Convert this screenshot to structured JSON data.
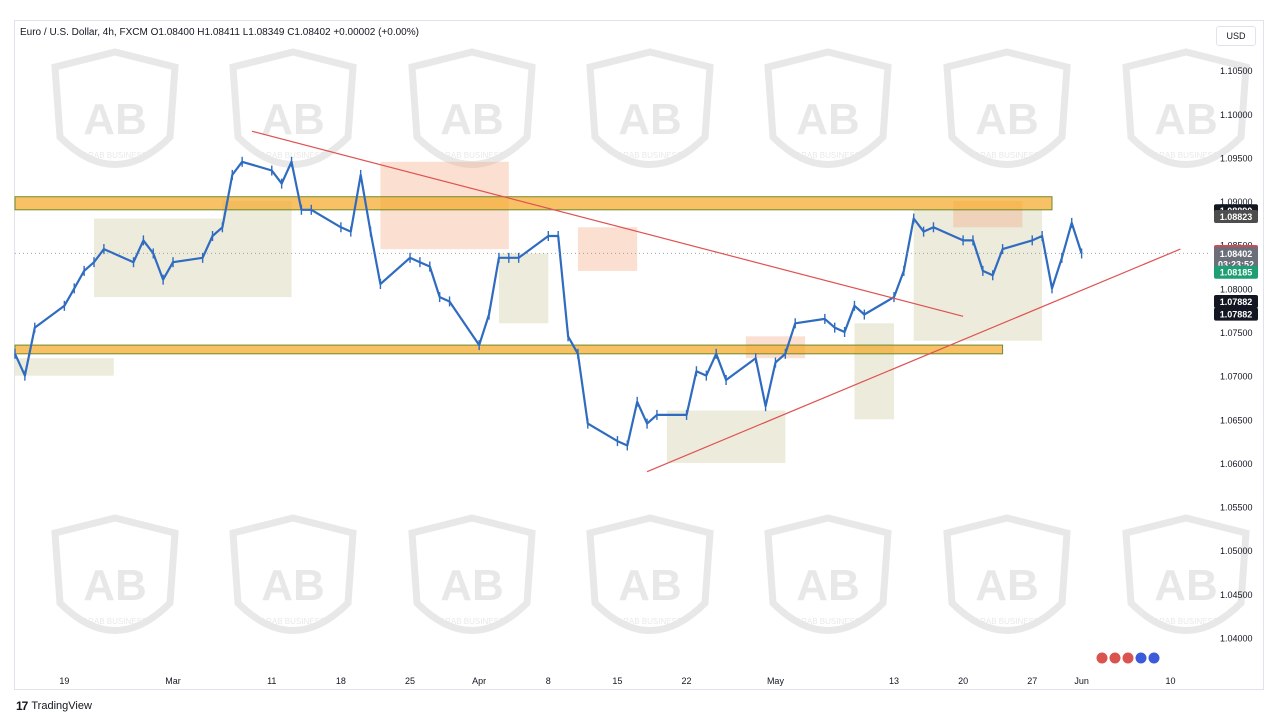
{
  "header": {
    "legend": "Euro / U.S. Dollar, 4h, FXCM  O1.08400  H1.08411  L1.08349  C1.08402  +0.00002 (+0.00%)",
    "currency": "USD"
  },
  "footer": {
    "brand": "TradingView"
  },
  "watermark": {
    "text": "ARAB BUSINESS"
  },
  "colors": {
    "candle": "#2f6cc0",
    "zone_band": "#f5a623",
    "trendline": "#e05252",
    "supply": "#f4a37a",
    "demand": "#22a884",
    "range": "#c9c79a"
  },
  "chart_data": {
    "type": "line",
    "symbol": "EURUSD",
    "timeframe": "4h",
    "ylim": [
      1.0365,
      1.108
    ],
    "price_ticks": [
      "1.10500",
      "1.10000",
      "1.09500",
      "1.09000",
      "1.08500",
      "1.08000",
      "1.07500",
      "1.07000",
      "1.06500",
      "1.06000",
      "1.05500",
      "1.05000",
      "1.04500",
      "1.04000"
    ],
    "price_tick_values": [
      1.105,
      1.1,
      1.095,
      1.09,
      1.085,
      1.08,
      1.075,
      1.07,
      1.065,
      1.06,
      1.055,
      1.05,
      1.045,
      1.04
    ],
    "date_ticks": [
      {
        "label": "19",
        "date": "2024-02-19"
      },
      {
        "label": "Mar",
        "date": "2024-03-01"
      },
      {
        "label": "11",
        "date": "2024-03-11"
      },
      {
        "label": "18",
        "date": "2024-03-18"
      },
      {
        "label": "25",
        "date": "2024-03-25"
      },
      {
        "label": "Apr",
        "date": "2024-04-01"
      },
      {
        "label": "8",
        "date": "2024-04-08"
      },
      {
        "label": "15",
        "date": "2024-04-15"
      },
      {
        "label": "22",
        "date": "2024-04-22"
      },
      {
        "label": "May",
        "date": "2024-05-01"
      },
      {
        "label": "13",
        "date": "2024-05-13"
      },
      {
        "label": "20",
        "date": "2024-05-20"
      },
      {
        "label": "27",
        "date": "2024-05-27"
      },
      {
        "label": "Jun",
        "date": "2024-06-01"
      },
      {
        "label": "10",
        "date": "2024-06-10"
      }
    ],
    "series": [
      {
        "values": [
          {
            "x": "2024-02-14",
            "y": 1.0725
          },
          {
            "x": "2024-02-15",
            "y": 1.07
          },
          {
            "x": "2024-02-16",
            "y": 1.0755
          },
          {
            "x": "2024-02-19",
            "y": 1.078
          },
          {
            "x": "2024-02-20",
            "y": 1.08
          },
          {
            "x": "2024-02-21",
            "y": 1.082
          },
          {
            "x": "2024-02-22",
            "y": 1.083
          },
          {
            "x": "2024-02-23",
            "y": 1.0845
          },
          {
            "x": "2024-02-26",
            "y": 1.083
          },
          {
            "x": "2024-02-27",
            "y": 1.0855
          },
          {
            "x": "2024-02-28",
            "y": 1.084
          },
          {
            "x": "2024-02-29",
            "y": 1.081
          },
          {
            "x": "2024-03-01",
            "y": 1.083
          },
          {
            "x": "2024-03-04",
            "y": 1.0835
          },
          {
            "x": "2024-03-05",
            "y": 1.086
          },
          {
            "x": "2024-03-06",
            "y": 1.087
          },
          {
            "x": "2024-03-07",
            "y": 1.093
          },
          {
            "x": "2024-03-08",
            "y": 1.0945
          },
          {
            "x": "2024-03-11",
            "y": 1.0935
          },
          {
            "x": "2024-03-12",
            "y": 1.092
          },
          {
            "x": "2024-03-13",
            "y": 1.0945
          },
          {
            "x": "2024-03-14",
            "y": 1.089
          },
          {
            "x": "2024-03-15",
            "y": 1.089
          },
          {
            "x": "2024-03-18",
            "y": 1.087
          },
          {
            "x": "2024-03-19",
            "y": 1.0865
          },
          {
            "x": "2024-03-20",
            "y": 1.093
          },
          {
            "x": "2024-03-21",
            "y": 1.0865
          },
          {
            "x": "2024-03-22",
            "y": 1.0805
          },
          {
            "x": "2024-03-25",
            "y": 1.0835
          },
          {
            "x": "2024-03-26",
            "y": 1.083
          },
          {
            "x": "2024-03-27",
            "y": 1.0825
          },
          {
            "x": "2024-03-28",
            "y": 1.079
          },
          {
            "x": "2024-03-29",
            "y": 1.0785
          },
          {
            "x": "2024-04-01",
            "y": 1.0735
          },
          {
            "x": "2024-04-02",
            "y": 1.077
          },
          {
            "x": "2024-04-03",
            "y": 1.0835
          },
          {
            "x": "2024-04-04",
            "y": 1.0835
          },
          {
            "x": "2024-04-05",
            "y": 1.0835
          },
          {
            "x": "2024-04-08",
            "y": 1.086
          },
          {
            "x": "2024-04-09",
            "y": 1.086
          },
          {
            "x": "2024-04-10",
            "y": 1.0745
          },
          {
            "x": "2024-04-11",
            "y": 1.0725
          },
          {
            "x": "2024-04-12",
            "y": 1.0645
          },
          {
            "x": "2024-04-15",
            "y": 1.0625
          },
          {
            "x": "2024-04-16",
            "y": 1.062
          },
          {
            "x": "2024-04-17",
            "y": 1.067
          },
          {
            "x": "2024-04-18",
            "y": 1.0645
          },
          {
            "x": "2024-04-19",
            "y": 1.0655
          },
          {
            "x": "2024-04-22",
            "y": 1.0655
          },
          {
            "x": "2024-04-23",
            "y": 1.0705
          },
          {
            "x": "2024-04-24",
            "y": 1.07
          },
          {
            "x": "2024-04-25",
            "y": 1.0725
          },
          {
            "x": "2024-04-26",
            "y": 1.0695
          },
          {
            "x": "2024-04-29",
            "y": 1.072
          },
          {
            "x": "2024-04-30",
            "y": 1.0665
          },
          {
            "x": "2024-05-01",
            "y": 1.0715
          },
          {
            "x": "2024-05-02",
            "y": 1.0725
          },
          {
            "x": "2024-05-03",
            "y": 1.076
          },
          {
            "x": "2024-05-06",
            "y": 1.0765
          },
          {
            "x": "2024-05-07",
            "y": 1.0755
          },
          {
            "x": "2024-05-08",
            "y": 1.075
          },
          {
            "x": "2024-05-09",
            "y": 1.078
          },
          {
            "x": "2024-05-10",
            "y": 1.077
          },
          {
            "x": "2024-05-13",
            "y": 1.079
          },
          {
            "x": "2024-05-14",
            "y": 1.082
          },
          {
            "x": "2024-05-15",
            "y": 1.088
          },
          {
            "x": "2024-05-16",
            "y": 1.0865
          },
          {
            "x": "2024-05-17",
            "y": 1.087
          },
          {
            "x": "2024-05-20",
            "y": 1.0855
          },
          {
            "x": "2024-05-21",
            "y": 1.0855
          },
          {
            "x": "2024-05-22",
            "y": 1.082
          },
          {
            "x": "2024-05-23",
            "y": 1.0815
          },
          {
            "x": "2024-05-24",
            "y": 1.0845
          },
          {
            "x": "2024-05-27",
            "y": 1.0855
          },
          {
            "x": "2024-05-28",
            "y": 1.086
          },
          {
            "x": "2024-05-29",
            "y": 1.08
          },
          {
            "x": "2024-05-30",
            "y": 1.0835
          },
          {
            "x": "2024-05-31",
            "y": 1.0875
          },
          {
            "x": "2024-06-01",
            "y": 1.084
          }
        ]
      }
    ],
    "zones": [
      {
        "from": 1.089,
        "to": 1.0905
      },
      {
        "from": 1.0725,
        "to": 1.0735
      }
    ],
    "trendlines": [
      [
        {
          "x": "2024-03-09",
          "y": 1.098
        },
        {
          "x": "2024-05-20",
          "y": 1.0768
        }
      ],
      [
        {
          "x": "2024-04-18",
          "y": 1.059
        },
        {
          "x": "2024-06-11",
          "y": 1.0845
        }
      ]
    ],
    "price_labels": [
      {
        "label": "1.08890",
        "value": 1.0889,
        "color": "#131722"
      },
      {
        "label": "1.08823",
        "value": 1.08823,
        "color": "#4d4d4d"
      },
      {
        "label": "1.08423",
        "value": 1.08423,
        "color": "#e0454f"
      },
      {
        "label": "1.08402",
        "value": 1.08402,
        "color": "#6b6f7a"
      },
      {
        "label": "03:23:52",
        "value": 1.0828,
        "color": "#6b6f7a"
      },
      {
        "label": "1.08185",
        "value": 1.08185,
        "color": "#1e9e72"
      },
      {
        "label": "1.07882",
        "value": 1.0785,
        "color": "#131722"
      },
      {
        "label": "1.07882",
        "value": 1.07705,
        "color": "#131722"
      }
    ],
    "current_price": 1.08402,
    "grid": false
  }
}
